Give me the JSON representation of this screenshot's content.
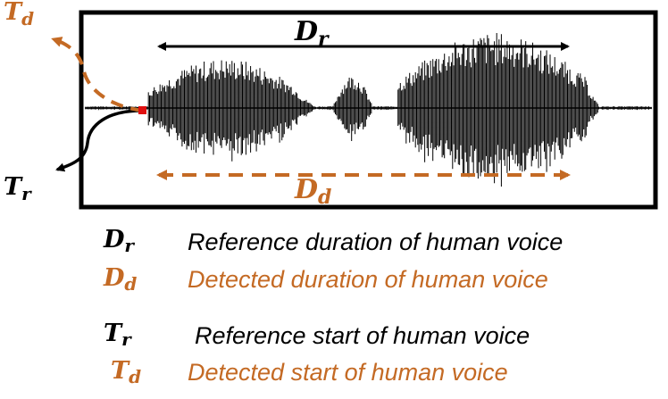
{
  "colors": {
    "reference": "#000000",
    "detected": "#c46a24",
    "marker": "#e01010"
  },
  "diagram": {
    "dr_label": {
      "main": "D",
      "sub": "r"
    },
    "dd_label": {
      "main": "D",
      "sub": "d"
    },
    "tr_label": {
      "main": "T",
      "sub": "r"
    },
    "td_label": {
      "main": "T",
      "sub": "d"
    }
  },
  "legend": [
    {
      "sym_main": "D",
      "sym_sub": "r",
      "text": "Reference duration of human voice",
      "color": "#000000"
    },
    {
      "sym_main": "D",
      "sym_sub": "d",
      "text": "Detected duration of human voice",
      "color": "#c46a24"
    },
    {
      "sym_main": "T",
      "sym_sub": "r",
      "text": "Reference start of human voice",
      "color": "#000000"
    },
    {
      "sym_main": "T",
      "sym_sub": "d",
      "text": "Detected start of human voice",
      "color": "#c46a24"
    }
  ]
}
